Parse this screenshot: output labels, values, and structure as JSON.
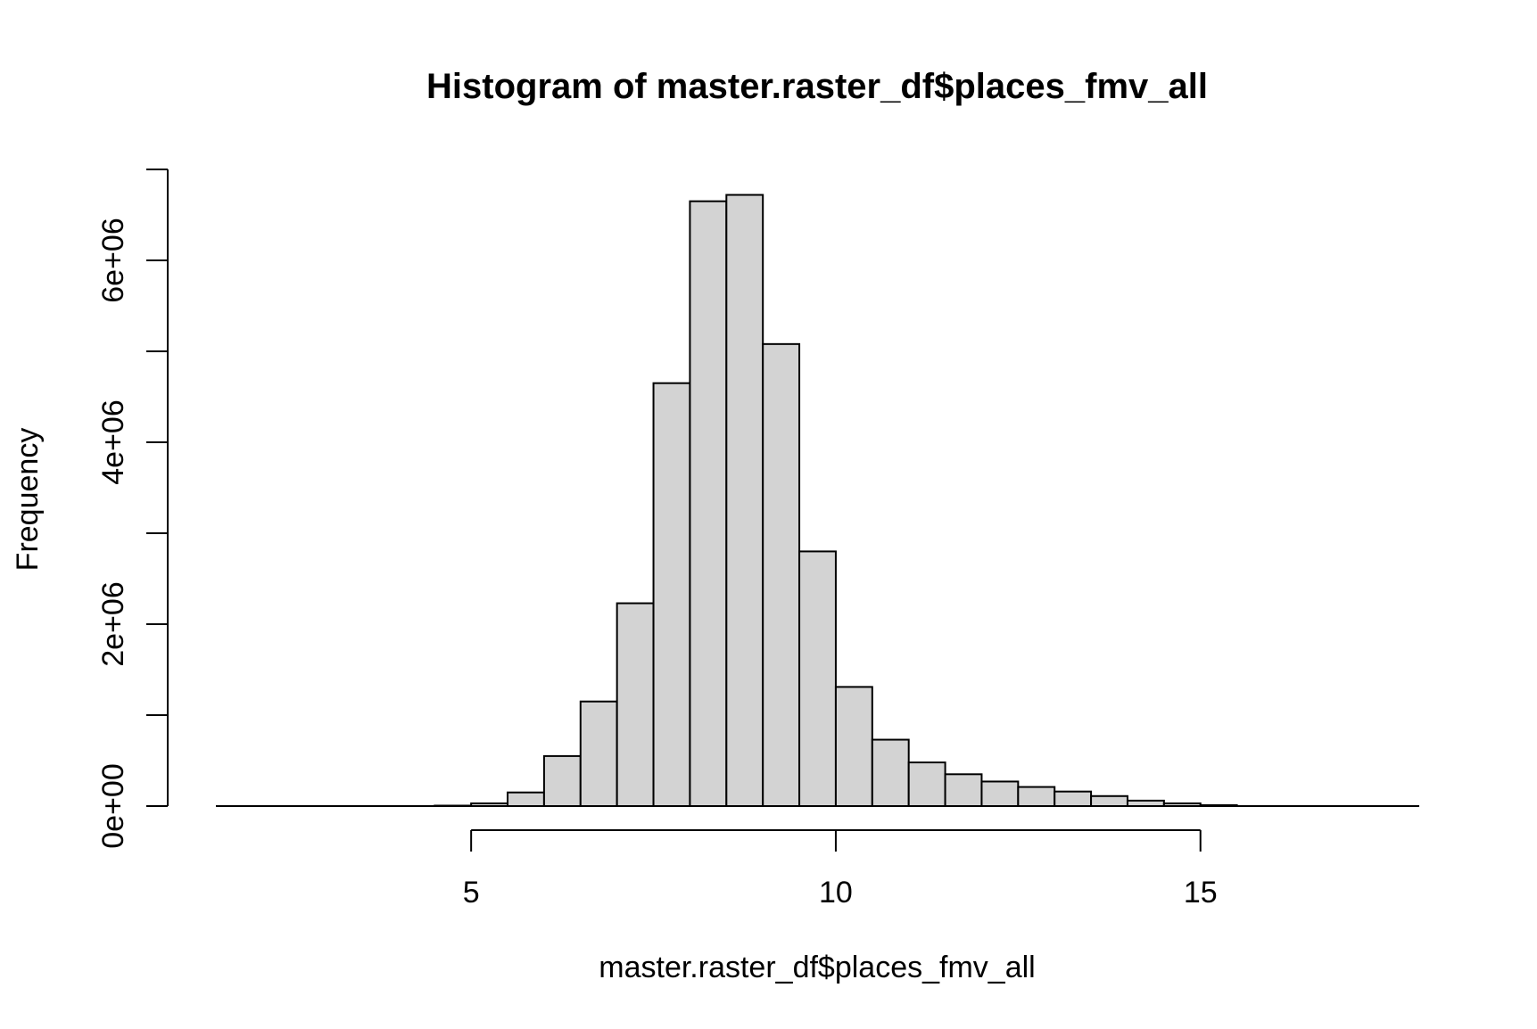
{
  "chart_data": {
    "type": "bar",
    "title": "Histogram of master.raster_df$places_fmv_all",
    "xlabel": "master.raster_df$places_fmv_all",
    "ylabel": "Frequency",
    "bin_width": 0.5,
    "bins": [
      {
        "x0": 4.5,
        "x1": 5.0,
        "count": 5000
      },
      {
        "x0": 5.0,
        "x1": 5.5,
        "count": 30000
      },
      {
        "x0": 5.5,
        "x1": 6.0,
        "count": 150000
      },
      {
        "x0": 6.0,
        "x1": 6.5,
        "count": 550000
      },
      {
        "x0": 6.5,
        "x1": 7.0,
        "count": 1150000
      },
      {
        "x0": 7.0,
        "x1": 7.5,
        "count": 2230000
      },
      {
        "x0": 7.5,
        "x1": 8.0,
        "count": 4650000
      },
      {
        "x0": 8.0,
        "x1": 8.5,
        "count": 6650000
      },
      {
        "x0": 8.5,
        "x1": 9.0,
        "count": 6720000
      },
      {
        "x0": 9.0,
        "x1": 9.5,
        "count": 5080000
      },
      {
        "x0": 9.5,
        "x1": 10.0,
        "count": 2800000
      },
      {
        "x0": 10.0,
        "x1": 10.5,
        "count": 1310000
      },
      {
        "x0": 10.5,
        "x1": 11.0,
        "count": 730000
      },
      {
        "x0": 11.0,
        "x1": 11.5,
        "count": 480000
      },
      {
        "x0": 11.5,
        "x1": 12.0,
        "count": 350000
      },
      {
        "x0": 12.0,
        "x1": 12.5,
        "count": 270000
      },
      {
        "x0": 12.5,
        "x1": 13.0,
        "count": 210000
      },
      {
        "x0": 13.0,
        "x1": 13.5,
        "count": 160000
      },
      {
        "x0": 13.5,
        "x1": 14.0,
        "count": 110000
      },
      {
        "x0": 14.0,
        "x1": 14.5,
        "count": 60000
      },
      {
        "x0": 14.5,
        "x1": 15.0,
        "count": 30000
      },
      {
        "x0": 15.0,
        "x1": 15.5,
        "count": 10000
      }
    ],
    "xlim": [
      1.5,
      18.0
    ],
    "ylim": [
      0,
      7000000
    ],
    "x_ticks": [
      5,
      10,
      15
    ],
    "x_tick_labels": [
      "5",
      "10",
      "15"
    ],
    "y_ticks": [
      0,
      1000000,
      2000000,
      3000000,
      4000000,
      5000000,
      6000000,
      7000000
    ],
    "y_tick_labels": [
      "0e+00",
      "",
      "2e+06",
      "",
      "4e+06",
      "",
      "6e+06",
      ""
    ],
    "grid": false,
    "colors": {
      "bar_fill": "#d3d3d3",
      "bar_stroke": "#000000"
    }
  }
}
